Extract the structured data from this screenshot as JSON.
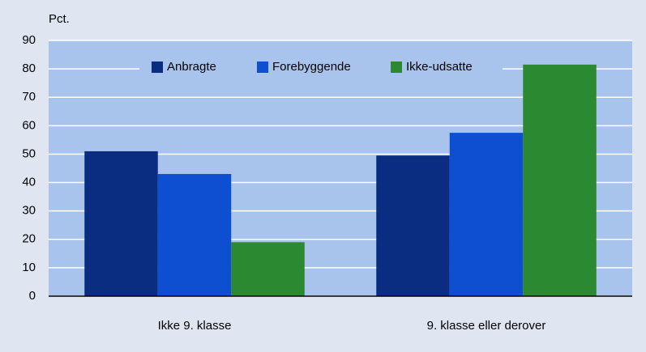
{
  "chart_data": {
    "type": "bar",
    "y_label": "Pct.",
    "categories": [
      "Ikke 9. klasse",
      "9. klasse eller derover"
    ],
    "series": [
      {
        "name": "Anbragte",
        "color": "#0a2d82",
        "values": [
          51,
          49.5
        ]
      },
      {
        "name": "Forebyggende",
        "color": "#0e4fd2",
        "values": [
          43,
          57.5
        ]
      },
      {
        "name": "Ikke-udsatte",
        "color": "#2b8a31",
        "values": [
          19,
          81.5
        ]
      }
    ],
    "ylim": [
      0,
      90
    ],
    "yticks": [
      0,
      10,
      20,
      30,
      40,
      50,
      60,
      70,
      80,
      90
    ],
    "grid": true,
    "legend": "top"
  }
}
